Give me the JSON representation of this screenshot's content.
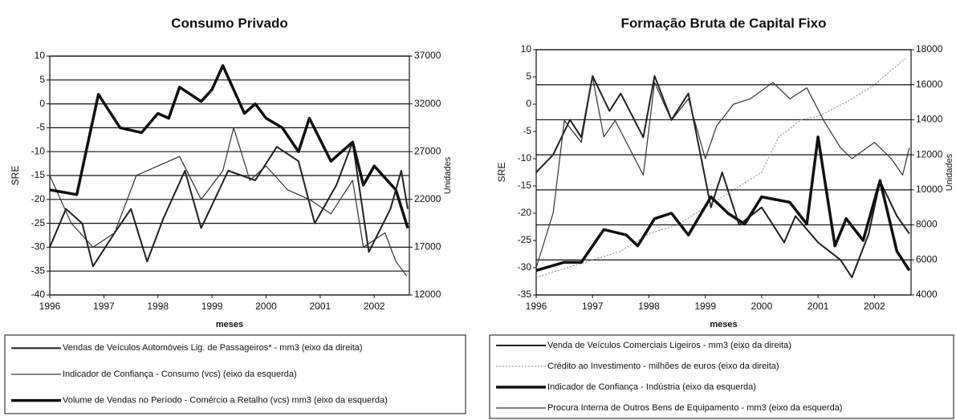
{
  "chart_data": [
    {
      "type": "line",
      "title": "Consumo Privado",
      "xlabel": "meses",
      "ylabel": "SRE",
      "y2label": "Unidades",
      "xlim": [
        1996,
        2002.65
      ],
      "xticks": [
        1996,
        1997,
        1998,
        1999,
        2000,
        2001,
        2002
      ],
      "ylim": [
        -40,
        10
      ],
      "yticks": [
        -40,
        -35,
        -30,
        -25,
        -20,
        -15,
        -10,
        -5,
        0,
        5,
        10
      ],
      "y2lim": [
        12000,
        37000
      ],
      "y2ticks": [
        12000,
        17000,
        22000,
        27000,
        32000,
        37000
      ],
      "grid": "y",
      "series": [
        {
          "name": "Vendas de Veículos Automóveis Lig. de Passageiros* - mm3 (eixo da direita)",
          "color": "#222222",
          "width": 2,
          "axis": "y2",
          "x": [
            1996,
            1996.3,
            1996.6,
            1996.8,
            1997.2,
            1997.5,
            1997.8,
            1998.1,
            1998.5,
            1998.8,
            1999.3,
            1999.8,
            2000.2,
            2000.6,
            2000.9,
            2001.3,
            2001.6,
            2001.9,
            2002.3,
            2002.5,
            2002.62
          ],
          "values": [
            17000,
            21000,
            19500,
            15000,
            18500,
            21000,
            15500,
            20000,
            25000,
            19000,
            25000,
            24000,
            27500,
            26000,
            19500,
            23500,
            28000,
            16500,
            21000,
            25000,
            21000
          ]
        },
        {
          "name": "Indicador de Confiança - Consumo (vcs) (eixo da esquerda)",
          "color": "#333333",
          "width": 1.2,
          "x": [
            1996,
            1996.4,
            1996.8,
            1997.2,
            1997.6,
            1998,
            1998.4,
            1998.8,
            1999.2,
            1999.4,
            1999.7,
            2000,
            2000.4,
            2000.8,
            2001.2,
            2001.6,
            2001.8,
            2002.2,
            2002.4,
            2002.6
          ],
          "values": [
            -15,
            -25,
            -30,
            -27,
            -15,
            -13,
            -11,
            -20,
            -14,
            -5,
            -16,
            -13,
            -18,
            -20,
            -23,
            -16,
            -30,
            -27,
            -33,
            -36
          ]
        },
        {
          "name": "Volume de Vendas no Período - Comércio a Retalho (vcs) mm3 (eixo da esquerda)",
          "color": "#111111",
          "width": 3.5,
          "x": [
            1996,
            1996.5,
            1996.9,
            1997.3,
            1997.7,
            1998,
            1998.2,
            1998.4,
            1998.8,
            1999,
            1999.2,
            1999.6,
            1999.8,
            2000,
            2000.3,
            2000.6,
            2000.8,
            2001.2,
            2001.6,
            2001.8,
            2002,
            2002.4,
            2002.62
          ],
          "values": [
            -18,
            -19,
            2,
            -5,
            -6,
            -2,
            -3,
            3.5,
            0.5,
            3,
            8,
            -2,
            0,
            -3,
            -5,
            -10,
            -3,
            -12,
            -8,
            -17,
            -13,
            -18,
            -26
          ]
        }
      ]
    },
    {
      "type": "line",
      "title": "Formação Bruta de Capital Fixo",
      "xlabel": "meses",
      "ylabel": "SRE",
      "y2label": "Unidades",
      "xlim": [
        1996,
        2002.65
      ],
      "xticks": [
        1996,
        1997,
        1998,
        1999,
        2000,
        2001,
        2002
      ],
      "ylim": [
        -35,
        10
      ],
      "yticks": [
        -35,
        -30,
        -25,
        -20,
        -15,
        -10,
        -5,
        0,
        5,
        10
      ],
      "y2lim": [
        4000,
        18000
      ],
      "y2ticks": [
        4000,
        6000,
        8000,
        10000,
        12000,
        14000,
        16000,
        18000
      ],
      "grid": "y2",
      "series": [
        {
          "name": "Venda de Veículos Comerciais Ligeiros - mm3 (eixo da direita)",
          "color": "#222222",
          "width": 2,
          "axis": "y2",
          "x": [
            1996,
            1996.3,
            1996.6,
            1996.8,
            1997,
            1997.3,
            1997.5,
            1997.9,
            1998.1,
            1998.4,
            1998.7,
            1999.1,
            1999.3,
            1999.6,
            2000,
            2000.4,
            2000.6,
            2001,
            2001.4,
            2001.6,
            2001.9,
            2002.1,
            2002.4,
            2002.62
          ],
          "values": [
            11000,
            12000,
            14000,
            13000,
            16500,
            14500,
            15500,
            13000,
            16500,
            14000,
            15500,
            9000,
            11000,
            8000,
            9000,
            7000,
            8500,
            7000,
            6000,
            5000,
            7500,
            10500,
            8500,
            7500
          ]
        },
        {
          "name": "Crédito ao Investimento - milhões de euros (eixo da direita)",
          "color": "#888888",
          "width": 1,
          "dash": true,
          "axis": "y2",
          "x": [
            1996,
            1996.5,
            1997,
            1997.5,
            1998,
            1998.5,
            1999,
            1999.5,
            2000,
            2000.3,
            2000.7,
            2001,
            2001.5,
            2002,
            2002.55
          ],
          "values": [
            5000,
            5500,
            6000,
            6500,
            7500,
            8000,
            9000,
            10000,
            11000,
            13000,
            14000,
            14200,
            15000,
            16000,
            17500
          ]
        },
        {
          "name": "Indicador de Confiança - Indústria (eixo da esquerda)",
          "color": "#111111",
          "width": 3.5,
          "x": [
            1996,
            1996.5,
            1996.8,
            1997.2,
            1997.6,
            1997.8,
            1998.1,
            1998.4,
            1998.7,
            1999.1,
            1999.4,
            1999.7,
            2000,
            2000.5,
            2000.8,
            2001,
            2001.3,
            2001.5,
            2001.8,
            2002.1,
            2002.4,
            2002.62
          ],
          "values": [
            -30.5,
            -29,
            -29,
            -23,
            -24,
            -26,
            -21,
            -20,
            -24,
            -17,
            -20,
            -22,
            -17,
            -18,
            -22,
            -6,
            -26,
            -21,
            -25,
            -14,
            -27,
            -30.5
          ]
        },
        {
          "name": "Procura Interna de Outros Bens de Equipamento - mm3 (eixo da esquerda)",
          "color": "#333333",
          "width": 1.2,
          "x": [
            1996,
            1996.3,
            1996.5,
            1996.8,
            1997,
            1997.2,
            1997.4,
            1997.9,
            1998.1,
            1998.4,
            1998.7,
            1999,
            1999.2,
            1999.5,
            1999.8,
            2000.2,
            2000.5,
            2000.8,
            2001.1,
            2001.4,
            2001.6,
            2002,
            2002.3,
            2002.5,
            2002.62
          ],
          "values": [
            -30,
            -20,
            -3,
            -7,
            5,
            -6,
            -3,
            -13,
            4,
            -3,
            1,
            -10,
            -4,
            0,
            1,
            4,
            1,
            3,
            -3,
            -8,
            -10,
            -7,
            -10,
            -13,
            -8
          ]
        }
      ]
    }
  ]
}
